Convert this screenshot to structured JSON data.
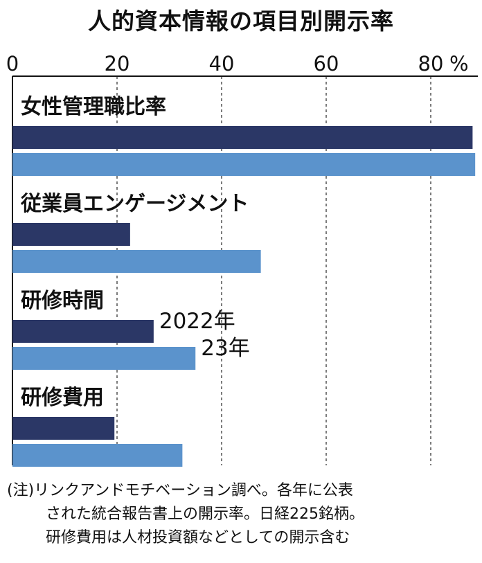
{
  "chart_data": {
    "type": "bar",
    "orientation": "horizontal",
    "title": "人的資本情報の項目別開示率",
    "unit": "%",
    "xlim": [
      0,
      88
    ],
    "ticks": [
      0,
      20,
      40,
      60,
      80
    ],
    "grid": true,
    "categories": [
      "女性管理職比率",
      "従業員エンゲージメント",
      "研修時間",
      "研修費用"
    ],
    "series": [
      {
        "name": "2022年",
        "color": "#2b3766",
        "values": [
          88,
          22.5,
          27,
          19.5
        ]
      },
      {
        "name": "23年",
        "color": "#5b93cc",
        "values": [
          88.5,
          47.5,
          35,
          32.5
        ]
      }
    ],
    "legend_placement": "inline next to 研修時間 bars",
    "note": [
      "(注)リンクアンドモチベーション調べ。各年に公表",
      "された統合報告書上の開示率。日経225銘柄。",
      "研修費用は人材投資額などとしての開示含む"
    ]
  }
}
